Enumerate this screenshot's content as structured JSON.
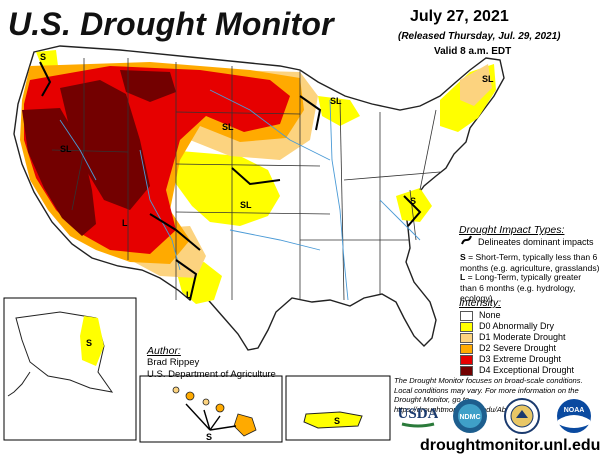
{
  "title": "U.S. Drought Monitor",
  "date": "July 27, 2021",
  "released": "(Released Thursday, Jul. 29, 2021)",
  "valid": "Valid 8 a.m. EDT",
  "impact": {
    "title": "Drought Impact Types:",
    "line_label": "Delineates dominant impacts",
    "s_label": "S",
    "s_text": " = Short-Term, typically less than 6 months (e.g. agriculture, grasslands)",
    "l_label": "L",
    "l_text": " = Long-Term, typically greater than 6 months (e.g. hydrology, ecology)"
  },
  "intensity": {
    "title": "Intensity:",
    "items": [
      {
        "label": "None",
        "color": "#ffffff"
      },
      {
        "label": "D0 Abnormally Dry",
        "color": "#ffff00"
      },
      {
        "label": "D1 Moderate Drought",
        "color": "#fcd37f"
      },
      {
        "label": "D2 Severe Drought",
        "color": "#ffaa00"
      },
      {
        "label": "D3 Extreme Drought",
        "color": "#e60000"
      },
      {
        "label": "D4 Exceptional Drought",
        "color": "#730000"
      }
    ]
  },
  "author": {
    "title": "Author:",
    "name": "Brad Rippey",
    "org": "U.S. Department of Agriculture"
  },
  "note": "The Drought Monitor focuses on broad-scale conditions. Local conditions may vary. For more information on the Drought Monitor, go to https://droughtmonitor.unl.edu/About.aspx",
  "logos": {
    "usda": "USDA",
    "ndmc": "NDMC",
    "noaa": "NOAA"
  },
  "url": "droughtmonitor.unl.edu",
  "map_labels": {
    "s": "S",
    "l": "L",
    "sl": "SL"
  }
}
